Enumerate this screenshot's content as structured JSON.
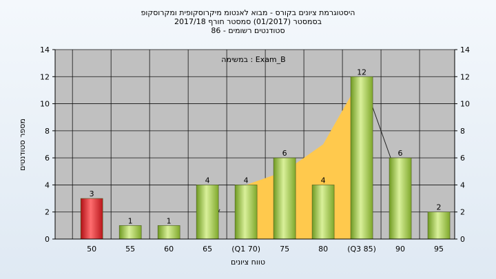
{
  "chart_data": {
    "type": "bar",
    "title_lines": [
      "היסטוגרמת ציונים בקורס - מבוא לאנטומ מיקרוסקופית ומקרוסקופ",
      "בסמסטר  (01/2017)  סמסטר חורף  2017/18",
      "סטודנטים רשומים - 86"
    ],
    "annotation": "במשימה : Exam_B",
    "xlabel": "טווח ציונים",
    "ylabel": "מספר סטודנטים",
    "ylim": [
      0,
      14
    ],
    "yticks": [
      0,
      2,
      4,
      6,
      8,
      10,
      12,
      14
    ],
    "grid": true,
    "categories": [
      "50",
      "55",
      "60",
      "65",
      "(Q1 70)",
      "75",
      "80",
      "(Q3 85)",
      "90",
      "95"
    ],
    "values": [
      3,
      1,
      1,
      4,
      4,
      6,
      4,
      12,
      6,
      2
    ],
    "bar_colors": [
      "#e0262b",
      "#9dcc4a",
      "#9dcc4a",
      "#9dcc4a",
      "#9dcc4a",
      "#9dcc4a",
      "#9dcc4a",
      "#9dcc4a",
      "#9dcc4a",
      "#9dcc4a"
    ],
    "area_color": "#ffc94d",
    "distribution_points": [
      {
        "x": "(Q1 70)",
        "y": 4
      },
      {
        "x": "75",
        "y": 5
      },
      {
        "x": "80",
        "y": 7
      },
      {
        "x": "(Q3 85)",
        "y": 12
      },
      {
        "x": "90",
        "y": 4
      }
    ],
    "plot_background": "#c0c0c0"
  }
}
